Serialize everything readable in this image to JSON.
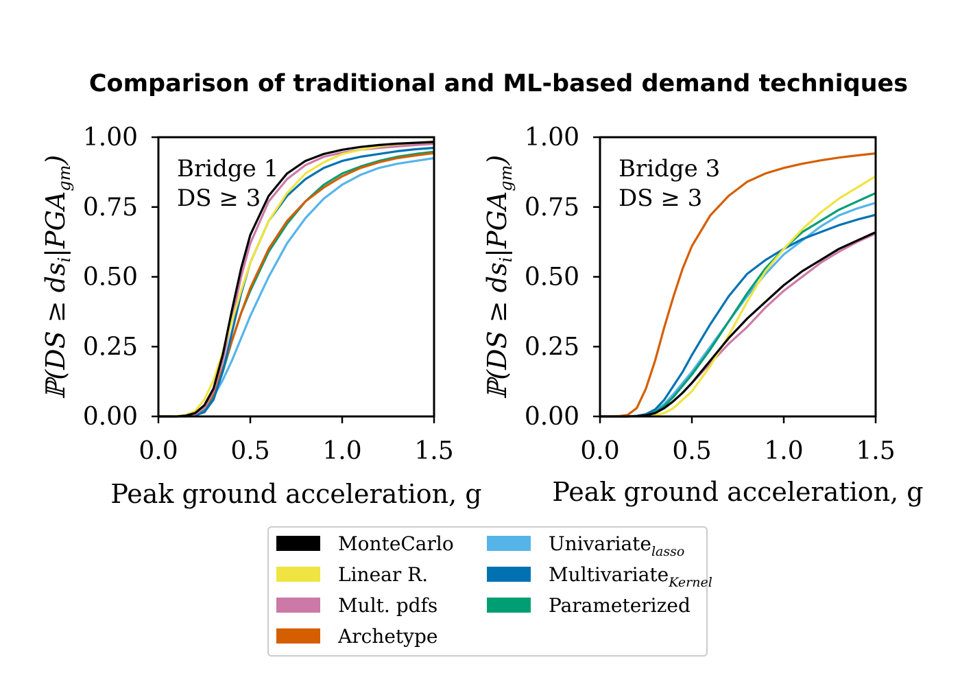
{
  "chart_data": {
    "title": "Comparison of traditional and ML-based demand techniques",
    "type": "line",
    "series_meta": [
      {
        "name": "MonteCarlo",
        "color": "#000000",
        "sub": ""
      },
      {
        "name": "Linear R.",
        "color": "#f0e442",
        "sub": ""
      },
      {
        "name": "Mult. pdfs",
        "color": "#cc79a7",
        "sub": ""
      },
      {
        "name": "Archetype",
        "color": "#d55e00",
        "sub": ""
      },
      {
        "name": "Univariate",
        "color": "#56b4e9",
        "sub": "lasso"
      },
      {
        "name": "Multivariate",
        "color": "#0072b2",
        "sub": "Kernel"
      },
      {
        "name": "Parameterized",
        "color": "#009e73",
        "sub": ""
      }
    ],
    "legend_position": "bottom-center",
    "panels": [
      {
        "annotation_line1": "Bridge 1",
        "annotation_line2": "DS ≥ 3",
        "xlabel": "Peak ground acceleration, g",
        "ylabel": "ℙ(DS ≥ ds",
        "ylabel_sub1": "i",
        "ylabel_mid": "|PGA",
        "ylabel_sub2": "gm",
        "ylabel_end": ")",
        "xlim": [
          0,
          1.5
        ],
        "ylim": [
          0,
          1
        ],
        "xticks": [
          "0.0",
          "0.5",
          "1.0",
          "1.5"
        ],
        "yticks": [
          "0.00",
          "0.25",
          "0.50",
          "0.75",
          "1.00"
        ],
        "grid": false,
        "x": [
          0.05,
          0.1,
          0.15,
          0.2,
          0.25,
          0.3,
          0.35,
          0.4,
          0.45,
          0.5,
          0.6,
          0.7,
          0.8,
          0.9,
          1.0,
          1.1,
          1.2,
          1.3,
          1.4,
          1.5
        ],
        "series": [
          {
            "values": [
              0.0,
              0.0,
              0.003,
              0.012,
              0.04,
              0.1,
              0.22,
              0.38,
              0.53,
              0.65,
              0.79,
              0.87,
              0.915,
              0.94,
              0.955,
              0.965,
              0.972,
              0.977,
              0.98,
              0.983
            ]
          },
          {
            "values": [
              0.0,
              0.001,
              0.005,
              0.02,
              0.06,
              0.13,
              0.23,
              0.34,
              0.45,
              0.55,
              0.7,
              0.8,
              0.87,
              0.91,
              0.94,
              0.955,
              0.967,
              0.975,
              0.98,
              0.985
            ]
          },
          {
            "values": [
              0.0,
              0.0,
              0.002,
              0.008,
              0.03,
              0.09,
              0.2,
              0.35,
              0.5,
              0.62,
              0.77,
              0.85,
              0.9,
              0.93,
              0.945,
              0.955,
              0.962,
              0.967,
              0.972,
              0.976
            ]
          },
          {
            "values": [
              0.0,
              0.0,
              0.002,
              0.01,
              0.03,
              0.08,
              0.17,
              0.27,
              0.37,
              0.46,
              0.6,
              0.7,
              0.77,
              0.82,
              0.86,
              0.89,
              0.91,
              0.925,
              0.935,
              0.943
            ]
          },
          {
            "values": [
              0.0,
              0.0,
              0.002,
              0.01,
              0.03,
              0.07,
              0.13,
              0.2,
              0.28,
              0.36,
              0.5,
              0.62,
              0.71,
              0.78,
              0.83,
              0.865,
              0.89,
              0.905,
              0.915,
              0.925
            ]
          },
          {
            "values": [
              0.0,
              0.0,
              0.0,
              0.004,
              0.015,
              0.06,
              0.16,
              0.3,
              0.44,
              0.55,
              0.7,
              0.79,
              0.85,
              0.89,
              0.915,
              0.93,
              0.94,
              0.95,
              0.957,
              0.962
            ]
          },
          {
            "values": [
              0.0,
              0.0,
              0.001,
              0.005,
              0.025,
              0.075,
              0.16,
              0.27,
              0.37,
              0.45,
              0.59,
              0.69,
              0.77,
              0.83,
              0.87,
              0.895,
              0.915,
              0.93,
              0.94,
              0.948
            ]
          }
        ]
      },
      {
        "annotation_line1": "Bridge 3",
        "annotation_line2": "DS ≥ 3",
        "xlabel": "Peak ground acceleration, g",
        "ylabel": "ℙ(DS ≥ ds",
        "ylabel_sub1": "i",
        "ylabel_mid": "|PGA",
        "ylabel_sub2": "gm",
        "ylabel_end": ")",
        "xlim": [
          0,
          1.5
        ],
        "ylim": [
          0,
          1
        ],
        "xticks": [
          "0.0",
          "0.5",
          "1.0",
          "1.5"
        ],
        "yticks": [
          "0.00",
          "0.25",
          "0.50",
          "0.75",
          "1.00"
        ],
        "grid": false,
        "x": [
          0.05,
          0.1,
          0.15,
          0.2,
          0.25,
          0.3,
          0.35,
          0.4,
          0.45,
          0.5,
          0.6,
          0.7,
          0.8,
          0.9,
          1.0,
          1.1,
          1.2,
          1.3,
          1.4,
          1.5
        ],
        "series": [
          {
            "values": [
              0.0,
              0.0,
              0.0,
              0.001,
              0.004,
              0.012,
              0.03,
              0.055,
              0.085,
              0.12,
              0.2,
              0.28,
              0.35,
              0.41,
              0.47,
              0.52,
              0.56,
              0.6,
              0.63,
              0.66
            ]
          },
          {
            "values": [
              0.0,
              0.0,
              0.0,
              0.0,
              0.001,
              0.005,
              0.012,
              0.03,
              0.06,
              0.09,
              0.18,
              0.29,
              0.41,
              0.52,
              0.6,
              0.67,
              0.73,
              0.78,
              0.82,
              0.86
            ]
          },
          {
            "values": [
              0.0,
              0.0,
              0.0,
              0.001,
              0.004,
              0.012,
              0.03,
              0.055,
              0.085,
              0.12,
              0.19,
              0.26,
              0.32,
              0.39,
              0.45,
              0.5,
              0.55,
              0.59,
              0.625,
              0.655
            ]
          },
          {
            "values": [
              0.0,
              0.001,
              0.005,
              0.03,
              0.1,
              0.2,
              0.32,
              0.43,
              0.53,
              0.61,
              0.72,
              0.79,
              0.84,
              0.87,
              0.89,
              0.905,
              0.917,
              0.927,
              0.935,
              0.942
            ]
          },
          {
            "values": [
              0.0,
              0.0,
              0.0,
              0.002,
              0.007,
              0.02,
              0.045,
              0.08,
              0.12,
              0.16,
              0.25,
              0.34,
              0.43,
              0.51,
              0.58,
              0.63,
              0.68,
              0.72,
              0.745,
              0.765
            ]
          },
          {
            "values": [
              0.0,
              0.0,
              0.0,
              0.002,
              0.008,
              0.025,
              0.06,
              0.11,
              0.16,
              0.22,
              0.33,
              0.43,
              0.51,
              0.56,
              0.6,
              0.635,
              0.66,
              0.685,
              0.705,
              0.722
            ]
          },
          {
            "values": [
              0.0,
              0.0,
              0.0,
              0.001,
              0.005,
              0.015,
              0.038,
              0.07,
              0.11,
              0.15,
              0.24,
              0.34,
              0.44,
              0.53,
              0.6,
              0.66,
              0.7,
              0.74,
              0.77,
              0.8
            ]
          }
        ]
      }
    ]
  }
}
